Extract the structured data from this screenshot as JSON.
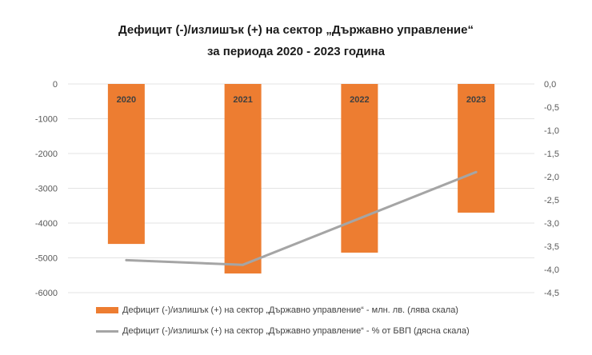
{
  "chart_data": {
    "type": "bar",
    "title_line1": "Дефицит (-)/излишък (+) на сектор „Държавно управление“",
    "title_line2": "за периода 2020 - 2023 година",
    "categories": [
      "2020",
      "2021",
      "2022",
      "2023"
    ],
    "series": [
      {
        "name": "Дефицит (-)/излишък (+) на сектор „Държавно управление“ - млн. лв. (лява скала)",
        "type": "bar",
        "axis": "left",
        "color": "#ED7D31",
        "values": [
          -4600,
          -5450,
          -4850,
          -3700
        ]
      },
      {
        "name": "Дефицит (-)/излишък (+) на сектор „Държавно управление“ - % от БВП (дясна скала)",
        "type": "line",
        "axis": "right",
        "color": "#A5A5A5",
        "values": [
          -3.8,
          -3.9,
          -2.9,
          -1.9
        ]
      }
    ],
    "left_axis": {
      "ylim": [
        -6000,
        0
      ],
      "ticks": [
        "0",
        "-1000",
        "-2000",
        "-3000",
        "-4000",
        "-5000",
        "-6000"
      ]
    },
    "right_axis": {
      "ylim": [
        -4.5,
        0
      ],
      "ticks": [
        "0,0",
        "-0,5",
        "-1,0",
        "-1,5",
        "-2,0",
        "-2,5",
        "-3,0",
        "-3,5",
        "-4,0",
        "-4,5"
      ]
    },
    "grid": true,
    "legend_position": "bottom"
  }
}
